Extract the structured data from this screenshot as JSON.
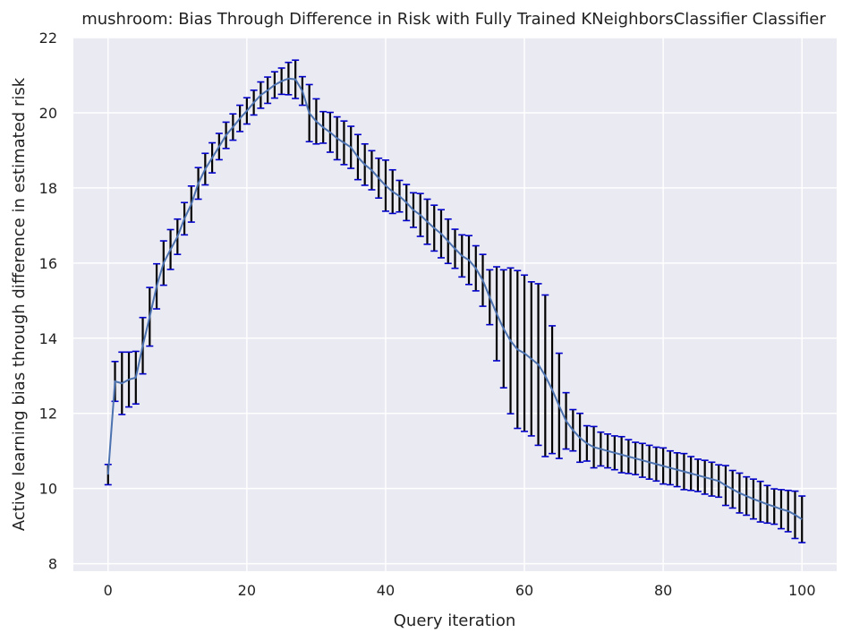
{
  "chart_data": {
    "type": "line",
    "title": "mushroom: Bias Through Difference in Risk with Fully Trained KNeighborsClassifier Classifier",
    "xlabel": "Query iteration",
    "ylabel": "Active learning bias through difference in estimated risk",
    "xlim": [
      -5,
      105
    ],
    "ylim": [
      7.8,
      22
    ],
    "x_ticks": [
      0,
      20,
      40,
      60,
      80,
      100
    ],
    "y_ticks": [
      8,
      10,
      12,
      14,
      16,
      18,
      20,
      22
    ],
    "grid": true,
    "colors": {
      "background": "#eaeaf2",
      "grid": "#ffffff",
      "line": "#4c72b0",
      "errorbar": "#000000",
      "cap": "#0000cc"
    },
    "x": [
      0,
      1,
      2,
      3,
      4,
      5,
      6,
      7,
      8,
      9,
      10,
      11,
      12,
      13,
      14,
      15,
      16,
      17,
      18,
      19,
      20,
      21,
      22,
      23,
      24,
      25,
      26,
      27,
      28,
      29,
      30,
      31,
      32,
      33,
      34,
      35,
      36,
      37,
      38,
      39,
      40,
      41,
      42,
      43,
      44,
      45,
      46,
      47,
      48,
      49,
      50,
      51,
      52,
      53,
      54,
      55,
      56,
      57,
      58,
      59,
      60,
      61,
      62,
      63,
      64,
      65,
      66,
      67,
      68,
      69,
      70,
      71,
      72,
      73,
      74,
      75,
      76,
      77,
      78,
      79,
      80,
      81,
      82,
      83,
      84,
      85,
      86,
      87,
      88,
      89,
      90,
      91,
      92,
      93,
      94,
      95,
      96,
      97,
      98,
      99,
      100
    ],
    "mean": [
      10.37,
      12.85,
      12.8,
      12.9,
      12.95,
      13.8,
      14.57,
      15.38,
      16.0,
      16.36,
      16.7,
      17.18,
      17.57,
      18.12,
      18.5,
      18.8,
      19.1,
      19.4,
      19.62,
      19.85,
      20.05,
      20.27,
      20.47,
      20.6,
      20.74,
      20.84,
      20.91,
      20.89,
      20.58,
      19.99,
      19.77,
      19.61,
      19.48,
      19.32,
      19.2,
      19.08,
      18.82,
      18.62,
      18.47,
      18.26,
      18.06,
      17.9,
      17.78,
      17.61,
      17.41,
      17.28,
      17.1,
      16.93,
      16.78,
      16.58,
      16.38,
      16.19,
      16.08,
      15.86,
      15.54,
      15.09,
      14.65,
      14.25,
      13.93,
      13.7,
      13.6,
      13.45,
      13.3,
      13.0,
      12.63,
      12.2,
      11.8,
      11.55,
      11.35,
      11.2,
      11.1,
      11.05,
      11.0,
      10.95,
      10.9,
      10.85,
      10.8,
      10.75,
      10.7,
      10.65,
      10.6,
      10.55,
      10.5,
      10.45,
      10.4,
      10.35,
      10.3,
      10.25,
      10.2,
      10.08,
      9.98,
      9.88,
      9.8,
      9.72,
      9.65,
      9.58,
      9.52,
      9.45,
      9.4,
      9.3,
      9.18
    ],
    "err": [
      0.27,
      0.53,
      0.83,
      0.73,
      0.7,
      0.75,
      0.78,
      0.6,
      0.59,
      0.53,
      0.47,
      0.43,
      0.48,
      0.42,
      0.42,
      0.4,
      0.35,
      0.35,
      0.35,
      0.35,
      0.35,
      0.33,
      0.35,
      0.35,
      0.35,
      0.35,
      0.43,
      0.51,
      0.38,
      0.76,
      0.6,
      0.42,
      0.53,
      0.57,
      0.58,
      0.56,
      0.6,
      0.55,
      0.52,
      0.53,
      0.68,
      0.58,
      0.42,
      0.48,
      0.46,
      0.57,
      0.6,
      0.61,
      0.64,
      0.59,
      0.52,
      0.56,
      0.65,
      0.6,
      0.69,
      0.73,
      1.25,
      1.57,
      1.94,
      2.1,
      2.08,
      2.05,
      2.15,
      2.15,
      1.7,
      1.4,
      0.75,
      0.55,
      0.65,
      0.47,
      0.55,
      0.45,
      0.45,
      0.45,
      0.48,
      0.45,
      0.43,
      0.45,
      0.45,
      0.45,
      0.48,
      0.45,
      0.45,
      0.48,
      0.45,
      0.43,
      0.45,
      0.45,
      0.43,
      0.53,
      0.5,
      0.53,
      0.51,
      0.53,
      0.54,
      0.5,
      0.47,
      0.52,
      0.55,
      0.63,
      0.62
    ]
  }
}
